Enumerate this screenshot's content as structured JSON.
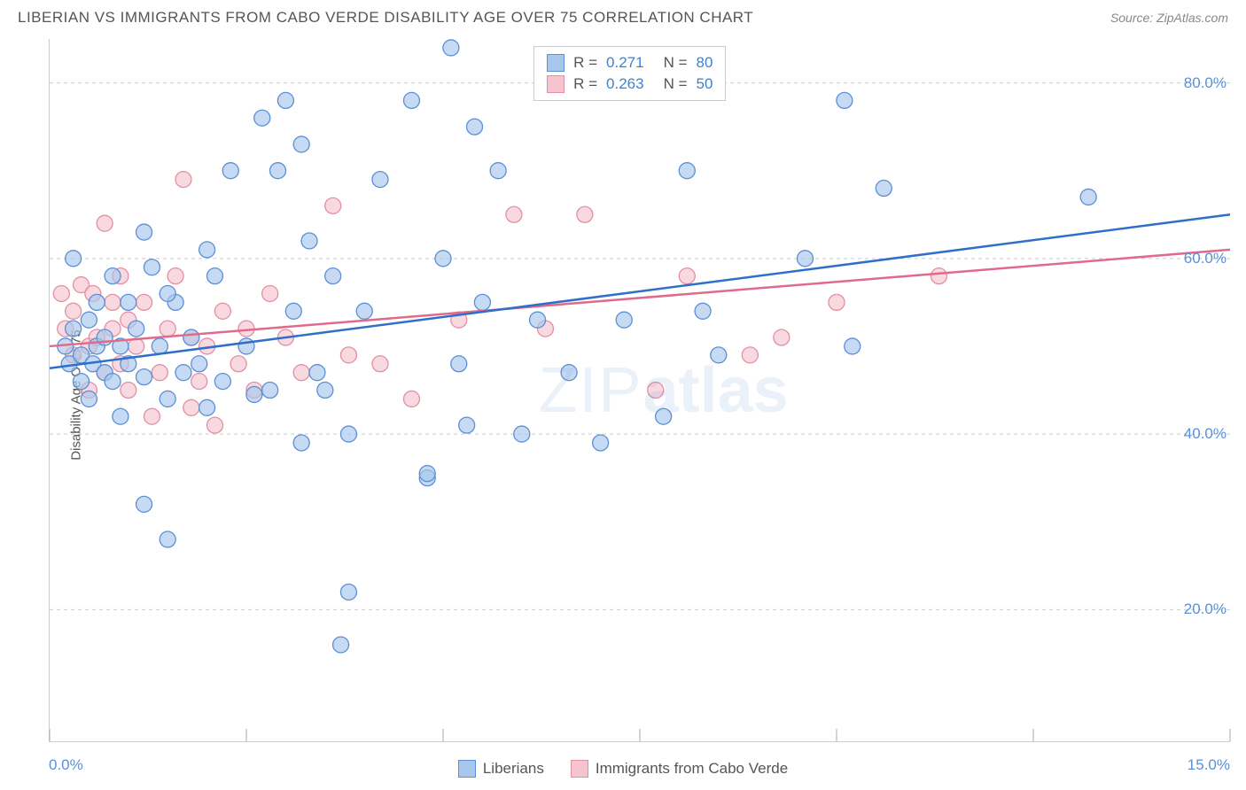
{
  "header": {
    "title": "LIBERIAN VS IMMIGRANTS FROM CABO VERDE DISABILITY AGE OVER 75 CORRELATION CHART",
    "source": "Source: ZipAtlas.com"
  },
  "axes": {
    "ylabel": "Disability Age Over 75",
    "x_min_label": "0.0%",
    "x_max_label": "15.0%",
    "xlim": [
      0,
      15
    ],
    "ylim": [
      5,
      85
    ],
    "yticks": [
      {
        "v": 20,
        "label": "20.0%"
      },
      {
        "v": 40,
        "label": "40.0%"
      },
      {
        "v": 60,
        "label": "60.0%"
      },
      {
        "v": 80,
        "label": "80.0%"
      }
    ],
    "xtick_vals": [
      0,
      2.5,
      5,
      7.5,
      10,
      12.5,
      15
    ],
    "grid_color": "#cccccc",
    "axis_label_color": "#5b8fd6"
  },
  "watermark": {
    "thin": "ZIP",
    "thick": "atlas"
  },
  "series": {
    "s1": {
      "label": "Liberians",
      "fill": "#a7c7ec",
      "stroke": "#5b8fd6",
      "line_color": "#2f6fc9",
      "reg_start": [
        0,
        47.5
      ],
      "reg_end": [
        15,
        65
      ],
      "r": "0.271",
      "n": "80",
      "points": [
        [
          0.2,
          50
        ],
        [
          0.25,
          48
        ],
        [
          0.3,
          52
        ],
        [
          0.3,
          60
        ],
        [
          0.4,
          46
        ],
        [
          0.4,
          49
        ],
        [
          0.5,
          53
        ],
        [
          0.5,
          44
        ],
        [
          0.55,
          48
        ],
        [
          0.6,
          50
        ],
        [
          0.6,
          55
        ],
        [
          0.7,
          47
        ],
        [
          0.7,
          51
        ],
        [
          0.8,
          46
        ],
        [
          0.8,
          58
        ],
        [
          0.9,
          50
        ],
        [
          0.9,
          42
        ],
        [
          1.0,
          48
        ],
        [
          1.0,
          55
        ],
        [
          1.1,
          52
        ],
        [
          1.2,
          46.5
        ],
        [
          1.2,
          32
        ],
        [
          1.3,
          59
        ],
        [
          1.4,
          50
        ],
        [
          1.5,
          44
        ],
        [
          1.5,
          28
        ],
        [
          1.6,
          55
        ],
        [
          1.7,
          47
        ],
        [
          1.8,
          51
        ],
        [
          1.9,
          48
        ],
        [
          1.2,
          63
        ],
        [
          2.0,
          43
        ],
        [
          2.1,
          58
        ],
        [
          2.2,
          46
        ],
        [
          2.3,
          70
        ],
        [
          2.5,
          50
        ],
        [
          2.6,
          44.5
        ],
        [
          2.7,
          76
        ],
        [
          2.8,
          45
        ],
        [
          2.9,
          70
        ],
        [
          3.0,
          78
        ],
        [
          3.1,
          54
        ],
        [
          3.2,
          39
        ],
        [
          3.2,
          73
        ],
        [
          3.3,
          62
        ],
        [
          3.4,
          47
        ],
        [
          3.5,
          45
        ],
        [
          3.6,
          58
        ],
        [
          3.7,
          16
        ],
        [
          3.8,
          40
        ],
        [
          3.8,
          22
        ],
        [
          4.0,
          54
        ],
        [
          4.2,
          69
        ],
        [
          4.6,
          78
        ],
        [
          4.8,
          35
        ],
        [
          4.8,
          35.5
        ],
        [
          5.1,
          84
        ],
        [
          5.2,
          48
        ],
        [
          5.3,
          41
        ],
        [
          5.4,
          75
        ],
        [
          5.5,
          55
        ],
        [
          5.7,
          70
        ],
        [
          6.0,
          40
        ],
        [
          6.2,
          53
        ],
        [
          6.6,
          47
        ],
        [
          7.0,
          39
        ],
        [
          7.3,
          53
        ],
        [
          7.8,
          42
        ],
        [
          8.1,
          70
        ],
        [
          8.2,
          79
        ],
        [
          8.3,
          54
        ],
        [
          8.5,
          49
        ],
        [
          9.6,
          60
        ],
        [
          10.1,
          78
        ],
        [
          10.2,
          50
        ],
        [
          10.6,
          68
        ],
        [
          13.2,
          67
        ],
        [
          5.0,
          60
        ],
        [
          2.0,
          61
        ],
        [
          1.5,
          56
        ]
      ]
    },
    "s2": {
      "label": "Immigrants from Cabo Verde",
      "fill": "#f6c4cf",
      "stroke": "#e38fa3",
      "line_color": "#e06a8a",
      "reg_start": [
        0,
        50
      ],
      "reg_end": [
        15,
        61
      ],
      "r": "0.263",
      "n": "50",
      "points": [
        [
          0.15,
          56
        ],
        [
          0.2,
          52
        ],
        [
          0.3,
          54
        ],
        [
          0.3,
          49
        ],
        [
          0.4,
          57
        ],
        [
          0.5,
          50
        ],
        [
          0.5,
          45
        ],
        [
          0.55,
          56
        ],
        [
          0.6,
          51
        ],
        [
          0.7,
          47
        ],
        [
          0.7,
          64
        ],
        [
          0.8,
          55
        ],
        [
          0.8,
          52
        ],
        [
          0.9,
          48
        ],
        [
          0.9,
          58
        ],
        [
          1.0,
          45
        ],
        [
          1.0,
          53
        ],
        [
          1.1,
          50
        ],
        [
          1.2,
          55
        ],
        [
          1.3,
          42
        ],
        [
          1.4,
          47
        ],
        [
          1.5,
          52
        ],
        [
          1.6,
          58
        ],
        [
          1.7,
          69
        ],
        [
          1.8,
          43
        ],
        [
          1.8,
          51
        ],
        [
          1.9,
          46
        ],
        [
          2.0,
          50
        ],
        [
          2.1,
          41
        ],
        [
          2.2,
          54
        ],
        [
          2.4,
          48
        ],
        [
          2.5,
          52
        ],
        [
          2.6,
          45
        ],
        [
          2.8,
          56
        ],
        [
          3.0,
          51
        ],
        [
          3.2,
          47
        ],
        [
          3.6,
          66
        ],
        [
          3.8,
          49
        ],
        [
          4.2,
          48
        ],
        [
          4.6,
          44
        ],
        [
          5.2,
          53
        ],
        [
          5.9,
          65
        ],
        [
          6.3,
          52
        ],
        [
          6.8,
          65
        ],
        [
          7.7,
          45
        ],
        [
          8.1,
          58
        ],
        [
          9.3,
          51
        ],
        [
          10.0,
          55
        ],
        [
          11.3,
          58
        ],
        [
          8.9,
          49
        ]
      ]
    }
  },
  "marker": {
    "radius": 9,
    "opacity": 0.65,
    "stroke_width": 1.3
  },
  "regline": {
    "width": 2.5
  }
}
